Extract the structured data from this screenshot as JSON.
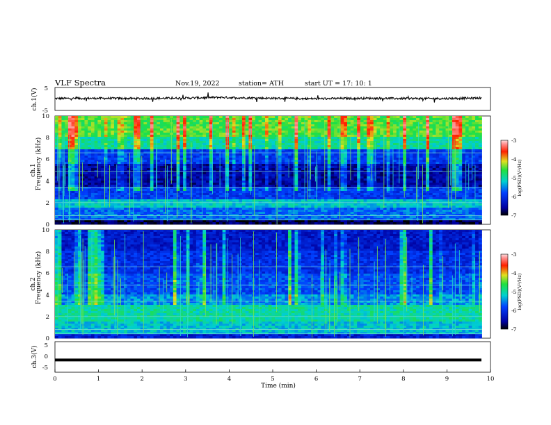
{
  "header": {
    "title": "VLF  Spectra",
    "date": "Nov.19, 2022",
    "station": "station= ATH",
    "start": "start  UT  =    17: 10: 1"
  },
  "colorbar": {
    "label": "log(PSD)(V²/Hz)",
    "ticks": [
      "-3",
      "-4",
      "-5",
      "-6",
      "-7"
    ]
  },
  "chart_data": [
    {
      "type": "line",
      "name": "ch1-waveform",
      "ylabel": "ch.1(V)",
      "ylim": [
        -5,
        5
      ],
      "yticks": [
        "5",
        "-5"
      ],
      "xlim": [
        0,
        10
      ],
      "x": [
        0.0,
        1.0,
        2.0,
        3.0,
        3.8,
        4.0,
        5.0,
        6.0,
        7.0,
        8.0,
        9.0,
        9.8
      ],
      "y": [
        0.2,
        0.3,
        0.2,
        0.4,
        0.7,
        0.6,
        0.3,
        0.1,
        0.3,
        0.2,
        0.2,
        0.4
      ]
    },
    {
      "type": "heatmap",
      "name": "ch1-spectrogram",
      "ylabel": "ch.1\nFrequency  (kHz)",
      "ylim": [
        0,
        10
      ],
      "yticks": [
        "0",
        "2",
        "4",
        "6",
        "8",
        "10"
      ],
      "xlim": [
        0,
        9.8
      ],
      "zrange": [
        -7,
        -3
      ]
    },
    {
      "type": "heatmap",
      "name": "ch2-spectrogram",
      "ylabel": "ch.2\nFrequency  (kHz)",
      "ylim": [
        0,
        10
      ],
      "yticks": [
        "0",
        "2",
        "4",
        "6",
        "8",
        "10"
      ],
      "xlim": [
        0,
        9.8
      ],
      "zrange": [
        -7,
        -3
      ]
    },
    {
      "type": "line",
      "name": "ch3-waveform",
      "ylabel": "ch.3(V)",
      "ylim": [
        -5,
        5
      ],
      "yticks": [
        "5",
        "0",
        "-5"
      ],
      "xlim": [
        0,
        10
      ],
      "x": [
        0.0,
        9.8
      ],
      "y": [
        -1.0,
        -1.0
      ]
    }
  ],
  "xaxis": {
    "label": "Time  (min)",
    "ticks": [
      "0",
      "1",
      "2",
      "3",
      "4",
      "5",
      "6",
      "7",
      "8",
      "9",
      "10"
    ]
  }
}
